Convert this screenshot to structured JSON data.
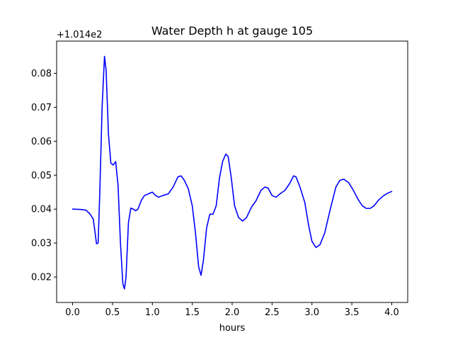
{
  "chart_data": {
    "type": "line",
    "title": "Water Depth h at gauge 105",
    "xlabel": "hours",
    "ylabel": "",
    "y_offset_label": "+1.014e2",
    "xlim": [
      -0.2,
      4.2
    ],
    "ylim": [
      0.0125,
      0.0895
    ],
    "x_ticks": [
      0.0,
      0.5,
      1.0,
      1.5,
      2.0,
      2.5,
      3.0,
      3.5,
      4.0
    ],
    "x_tick_labels": [
      "0.0",
      "0.5",
      "1.0",
      "1.5",
      "2.0",
      "2.5",
      "3.0",
      "3.5",
      "4.0"
    ],
    "y_ticks": [
      0.02,
      0.03,
      0.04,
      0.05,
      0.06,
      0.07,
      0.08
    ],
    "y_tick_labels": [
      "0.02",
      "0.03",
      "0.04",
      "0.05",
      "0.06",
      "0.07",
      "0.08"
    ],
    "grid": false,
    "legend": "none",
    "series": [
      {
        "color": "#0000ff",
        "points": [
          [
            0.0,
            0.04
          ],
          [
            0.1,
            0.0399
          ],
          [
            0.17,
            0.0397
          ],
          [
            0.22,
            0.0385
          ],
          [
            0.26,
            0.037
          ],
          [
            0.3,
            0.0298
          ],
          [
            0.32,
            0.03
          ],
          [
            0.34,
            0.044
          ],
          [
            0.37,
            0.07
          ],
          [
            0.4,
            0.085
          ],
          [
            0.42,
            0.081
          ],
          [
            0.45,
            0.062
          ],
          [
            0.48,
            0.0535
          ],
          [
            0.51,
            0.053
          ],
          [
            0.54,
            0.054
          ],
          [
            0.57,
            0.047
          ],
          [
            0.6,
            0.03
          ],
          [
            0.63,
            0.018
          ],
          [
            0.65,
            0.0165
          ],
          [
            0.67,
            0.02
          ],
          [
            0.7,
            0.036
          ],
          [
            0.73,
            0.0403
          ],
          [
            0.76,
            0.04
          ],
          [
            0.79,
            0.0395
          ],
          [
            0.82,
            0.04
          ],
          [
            0.86,
            0.0425
          ],
          [
            0.9,
            0.044
          ],
          [
            0.95,
            0.0445
          ],
          [
            1.0,
            0.045
          ],
          [
            1.04,
            0.044
          ],
          [
            1.08,
            0.0435
          ],
          [
            1.13,
            0.044
          ],
          [
            1.2,
            0.0445
          ],
          [
            1.26,
            0.0465
          ],
          [
            1.32,
            0.0495
          ],
          [
            1.36,
            0.0498
          ],
          [
            1.4,
            0.0485
          ],
          [
            1.45,
            0.046
          ],
          [
            1.5,
            0.041
          ],
          [
            1.54,
            0.033
          ],
          [
            1.58,
            0.023
          ],
          [
            1.61,
            0.0205
          ],
          [
            1.64,
            0.025
          ],
          [
            1.68,
            0.0345
          ],
          [
            1.72,
            0.0385
          ],
          [
            1.76,
            0.0385
          ],
          [
            1.8,
            0.041
          ],
          [
            1.84,
            0.049
          ],
          [
            1.88,
            0.054
          ],
          [
            1.92,
            0.0562
          ],
          [
            1.95,
            0.0555
          ],
          [
            1.99,
            0.049
          ],
          [
            2.03,
            0.041
          ],
          [
            2.08,
            0.0375
          ],
          [
            2.13,
            0.0365
          ],
          [
            2.18,
            0.0375
          ],
          [
            2.24,
            0.0405
          ],
          [
            2.3,
            0.0425
          ],
          [
            2.36,
            0.0455
          ],
          [
            2.41,
            0.0465
          ],
          [
            2.45,
            0.0462
          ],
          [
            2.5,
            0.044
          ],
          [
            2.55,
            0.0435
          ],
          [
            2.6,
            0.0445
          ],
          [
            2.66,
            0.0455
          ],
          [
            2.72,
            0.0475
          ],
          [
            2.77,
            0.0498
          ],
          [
            2.8,
            0.0495
          ],
          [
            2.85,
            0.0465
          ],
          [
            2.91,
            0.042
          ],
          [
            2.96,
            0.035
          ],
          [
            3.0,
            0.0305
          ],
          [
            3.05,
            0.0287
          ],
          [
            3.1,
            0.0295
          ],
          [
            3.16,
            0.033
          ],
          [
            3.23,
            0.04
          ],
          [
            3.3,
            0.0465
          ],
          [
            3.35,
            0.0485
          ],
          [
            3.4,
            0.0488
          ],
          [
            3.46,
            0.0478
          ],
          [
            3.52,
            0.0455
          ],
          [
            3.58,
            0.0428
          ],
          [
            3.63,
            0.041
          ],
          [
            3.68,
            0.0402
          ],
          [
            3.73,
            0.0402
          ],
          [
            3.78,
            0.041
          ],
          [
            3.84,
            0.0428
          ],
          [
            3.9,
            0.044
          ],
          [
            3.95,
            0.0447
          ],
          [
            4.0,
            0.0452
          ]
        ]
      }
    ]
  }
}
